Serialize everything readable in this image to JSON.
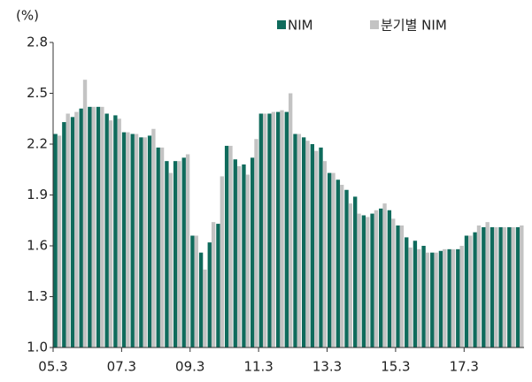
{
  "chart_data": {
    "type": "bar",
    "y_label": "(%)",
    "categories": [
      "05.3",
      null,
      null,
      null,
      null,
      null,
      null,
      null,
      "07.3",
      null,
      null,
      null,
      null,
      null,
      null,
      null,
      "09.3",
      null,
      null,
      null,
      null,
      null,
      null,
      null,
      "11.3",
      null,
      null,
      null,
      null,
      null,
      null,
      null,
      "13.3",
      null,
      null,
      null,
      null,
      null,
      null,
      null,
      "15.3",
      null,
      null,
      null,
      null,
      null,
      null,
      null,
      "17.3",
      null,
      null,
      null,
      null,
      null,
      null
    ],
    "series": [
      {
        "name": "NIM",
        "color": "#0f6b5c",
        "values": [
          2.26,
          2.33,
          2.36,
          2.41,
          2.42,
          2.42,
          2.38,
          2.37,
          2.27,
          2.26,
          2.24,
          2.25,
          2.18,
          2.1,
          2.1,
          2.12,
          1.66,
          1.56,
          1.62,
          1.73,
          2.19,
          2.11,
          2.08,
          2.12,
          2.38,
          2.38,
          2.39,
          2.39,
          2.26,
          2.24,
          2.2,
          2.18,
          2.03,
          1.99,
          1.93,
          1.89,
          1.78,
          1.79,
          1.82,
          1.81,
          1.72,
          1.65,
          1.63,
          1.6,
          1.56,
          1.57,
          1.58,
          1.58,
          1.66,
          1.68,
          1.71,
          1.71,
          1.71,
          1.71,
          1.71
        ]
      },
      {
        "name": "분기별 NIM",
        "color": "#c3c3c3",
        "values": [
          2.25,
          2.38,
          2.39,
          2.58,
          2.42,
          2.42,
          2.34,
          2.35,
          2.27,
          2.26,
          2.24,
          2.29,
          2.18,
          2.03,
          2.1,
          2.14,
          1.66,
          1.46,
          1.74,
          2.01,
          2.19,
          2.07,
          2.02,
          2.23,
          2.38,
          2.39,
          2.4,
          2.5,
          2.26,
          2.22,
          2.16,
          2.1,
          2.03,
          1.96,
          1.85,
          1.79,
          1.77,
          1.81,
          1.85,
          1.76,
          1.72,
          1.59,
          1.58,
          1.56,
          1.56,
          1.58,
          1.58,
          1.6,
          1.66,
          1.72,
          1.74,
          1.71,
          1.71,
          1.71,
          1.72
        ]
      }
    ],
    "ylim": [
      1.0,
      2.8
    ],
    "yticks": [
      {
        "value": 1.0,
        "label": "1.0"
      },
      1.3,
      1.6,
      1.9,
      2.2,
      2.5,
      2.8
    ],
    "grid": false
  }
}
